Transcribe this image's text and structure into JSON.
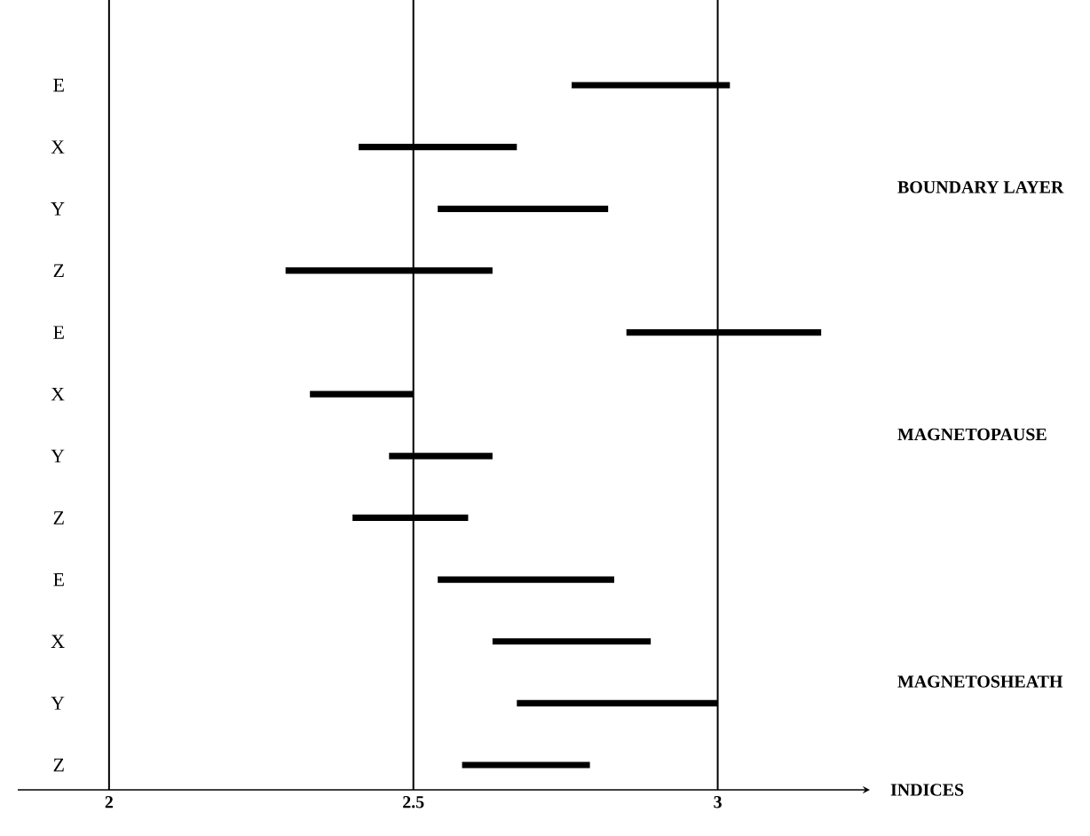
{
  "chart_data": {
    "type": "bar",
    "orientation": "horizontal",
    "xlabel": "INDICES",
    "categories": [
      "E",
      "X",
      "Y",
      "Z",
      "E",
      "X",
      "Y",
      "Z",
      "E",
      "X",
      "Y",
      "Z"
    ],
    "base": [
      2.76,
      2.41,
      2.54,
      2.29,
      2.85,
      2.33,
      2.46,
      2.4,
      2.54,
      2.63,
      2.67,
      2.58
    ],
    "values": [
      0.26,
      0.26,
      0.28,
      0.34,
      0.32,
      0.17,
      0.17,
      0.19,
      0.29,
      0.26,
      0.33,
      0.21
    ],
    "color": "#000000",
    "xlim": [
      1.85,
      3.25
    ],
    "xticks": [
      2,
      2.5,
      3
    ],
    "ref_lines": [
      {
        "axis": "x",
        "value": 2
      },
      {
        "axis": "x",
        "value": 2.5
      },
      {
        "axis": "x",
        "value": 3
      }
    ],
    "annotations": [
      "BOUNDARY LAYER",
      "MAGNETOPAUSE",
      "MAGNETOSHEATH"
    ]
  }
}
